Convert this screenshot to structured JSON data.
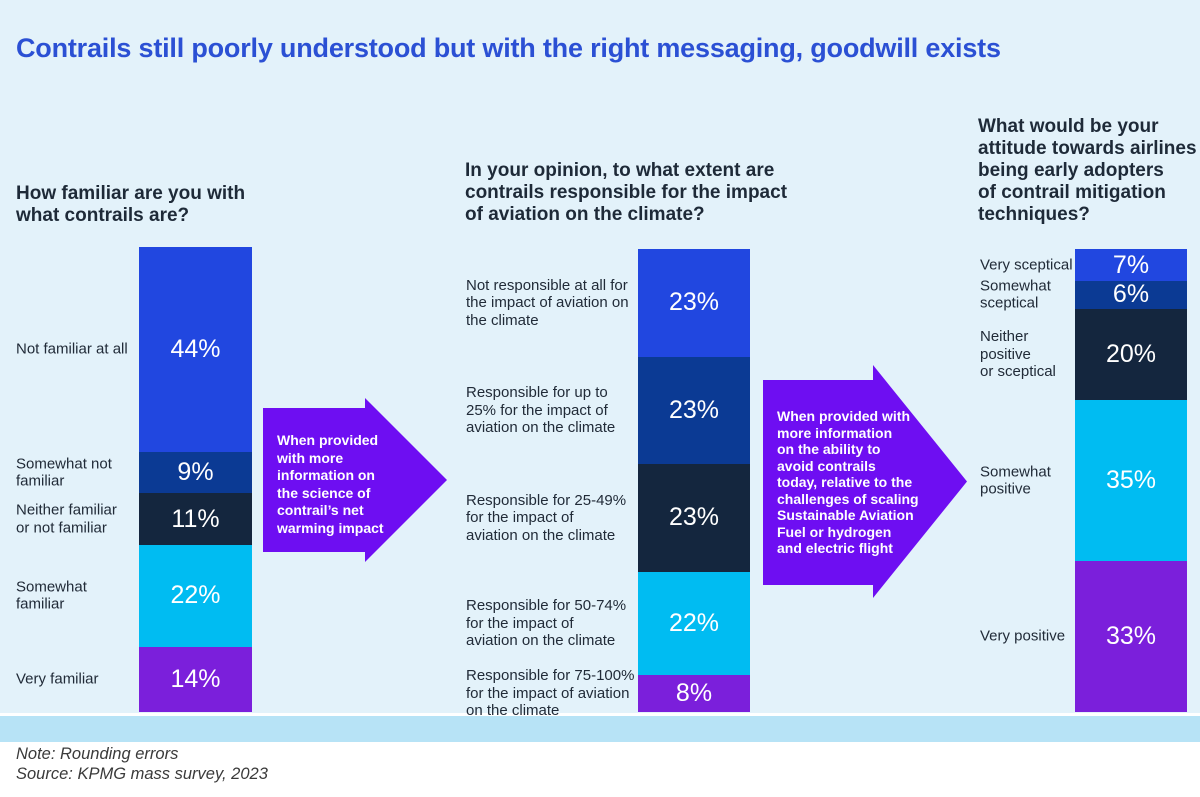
{
  "page": {
    "title": "Contrails still poorly understood but with the right messaging, goodwill exists",
    "note_line1": "Note: Rounding errors",
    "note_line2": "Source: KPMG mass survey, 2023"
  },
  "colors": {
    "background": "#E3F2FA",
    "bottom_band": "#B7E3F6",
    "title_blue": "#2B50D4",
    "text_dark": "#1E2A38",
    "arrow_purple": "#6E0EF2",
    "segment_palette": [
      "#2147E0",
      "#0B3A94",
      "#14263E",
      "#00BCF2",
      "#7B1FDB"
    ]
  },
  "chart_data": [
    {
      "type": "bar",
      "stacked": true,
      "orientation": "vertical",
      "unit": "%",
      "title": "How familiar are you with\nwhat contrails are?",
      "categories": [
        "Not familiar at all",
        "Somewhat not\nfamiliar",
        "Neither familiar\nor not familiar",
        "Somewhat\nfamiliar",
        "Very familiar"
      ],
      "values": [
        44,
        9,
        11,
        22,
        14
      ]
    },
    {
      "type": "bar",
      "stacked": true,
      "orientation": "vertical",
      "unit": "%",
      "title": "In your opinion, to what extent are\ncontrails responsible for the impact\nof aviation on the climate?",
      "categories": [
        "Not responsible at all for\nthe impact of aviation on\nthe climate",
        "Responsible for up to\n25% for the impact of\naviation on the climate",
        "Responsible for 25-49%\nfor the impact of\naviation on the climate",
        "Responsible for 50-74%\nfor the impact of\naviation on the climate",
        "Responsible for 75-100%\nfor the impact of aviation\non the climate"
      ],
      "values": [
        23,
        23,
        23,
        22,
        8
      ]
    },
    {
      "type": "bar",
      "stacked": true,
      "orientation": "vertical",
      "unit": "%",
      "title": "What would be your\nattitude towards airlines\nbeing early adopters\nof contrail mitigation\ntechniques?",
      "categories": [
        "Very sceptical",
        "Somewhat\nsceptical",
        "Neither\npositive\nor sceptical",
        "Somewhat\npositive",
        "Very positive"
      ],
      "values": [
        7,
        6,
        20,
        35,
        33
      ]
    }
  ],
  "arrows": [
    {
      "text": "When provided\nwith more\ninformation on\nthe science of\ncontrail’s net\nwarming impact"
    },
    {
      "text": "When provided with\nmore information\non the ability to\navoid contrails\ntoday, relative to the\nchallenges of scaling\nSustainable Aviation\nFuel or hydrogen\nand electric flight"
    }
  ]
}
